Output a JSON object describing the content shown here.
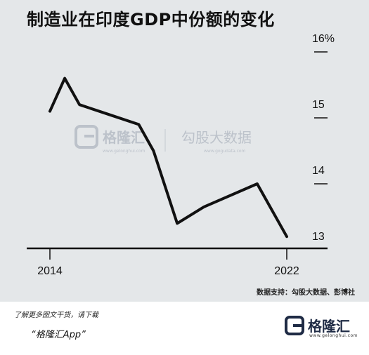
{
  "title": "制造业在印度GDP中份额的变化",
  "chart_data": {
    "type": "line",
    "title": "制造业在印度GDP中份额的变化",
    "x": [
      2014,
      2014.5,
      2015,
      2016,
      2017,
      2017.5,
      2018.3,
      2019.2,
      2021,
      2022
    ],
    "series": [
      {
        "values": [
          15.1,
          15.6,
          15.2,
          15.05,
          14.9,
          14.5,
          13.4,
          13.65,
          14.0,
          13.2
        ]
      }
    ],
    "xlim": [
      2014,
      2022
    ],
    "ylim": [
      13,
      16
    ],
    "x_tick_labels": [
      "2014",
      "2022"
    ],
    "y_tick_labels": [
      "13",
      "14",
      "15",
      "16%"
    ],
    "grid": false,
    "legend": "none"
  },
  "watermark": {
    "brand": "格隆汇",
    "brand_url": "www.gelonghui.com",
    "partner": "勾股大数据",
    "partner_url": "www.gogudata.com"
  },
  "source_text": "数据支持：勾股大数据、彭博社",
  "footer": {
    "note": "了解更多图文干货，请下载",
    "app": "“格隆汇App”",
    "logo_name": "格隆汇",
    "logo_url": "www.gelonghui.com"
  },
  "colors": {
    "line": "#111111",
    "background": "#e4e7e9",
    "brand": "#1f2b45"
  }
}
